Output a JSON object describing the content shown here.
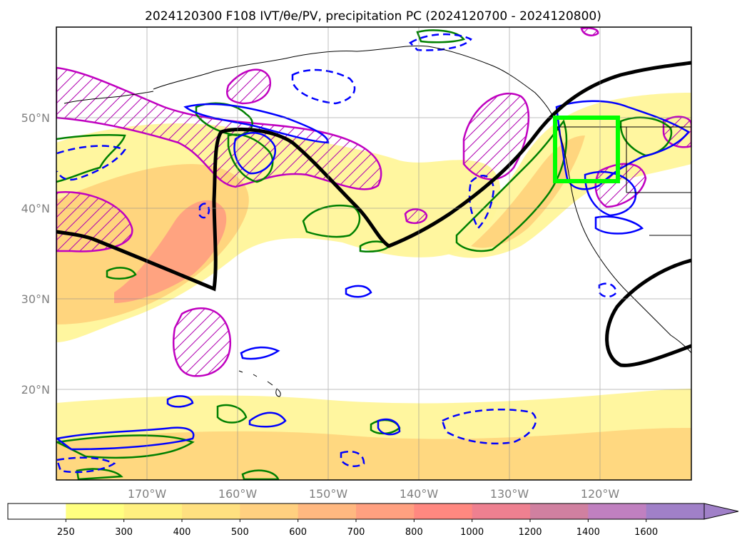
{
  "title": "2024120300 F108 IVT/θe/PV, precipitation PC (2024120700 - 2024120800)",
  "map": {
    "lat_labels": [
      "50°N",
      "40°N",
      "30°N",
      "20°N"
    ],
    "lon_labels": [
      "170°W",
      "160°W",
      "150°W",
      "140°W",
      "130°W",
      "120°W"
    ],
    "extent": {
      "lon_min": -180,
      "lon_max": -110,
      "lat_min": 10,
      "lat_max": 60
    },
    "box": {
      "lon": [
        -125,
        -118
      ],
      "lat": [
        43,
        50
      ],
      "color": "#00ff00"
    }
  },
  "colorbar": {
    "ticks": [
      "250",
      "300",
      "400",
      "500",
      "600",
      "700",
      "800",
      "1000",
      "1200",
      "1400",
      "1600"
    ],
    "colors": [
      "#ffffff",
      "#ffff80",
      "#fff080",
      "#ffe080",
      "#ffd080",
      "#ffb880",
      "#ffa080",
      "#ff8880",
      "#ee8090",
      "#d080a0",
      "#c080c0",
      "#a080c8"
    ]
  },
  "colors": {
    "ivt_low": "#fff59a",
    "ivt_mid": "#ffd27a",
    "ivt_high": "#ff9a80",
    "pv_contour": "#c000c0",
    "theta_pos": "#008000",
    "theta_neg": "#0000ff",
    "jet": "#000000"
  }
}
